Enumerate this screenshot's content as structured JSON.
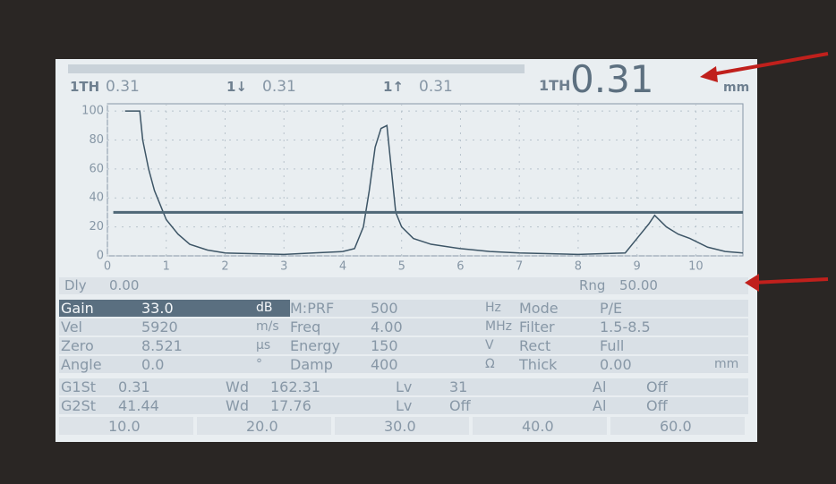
{
  "header": {
    "readings": [
      {
        "label": "1TH",
        "value": "0.31"
      },
      {
        "label": "1↓",
        "value": "0.31"
      },
      {
        "label": "1↑",
        "value": "0.31"
      }
    ],
    "main_reading": {
      "label": "1TH",
      "value": "0.31"
    },
    "unit": "mm"
  },
  "chart_data": {
    "type": "line",
    "x": [
      0.3,
      0.55,
      0.6,
      0.7,
      0.8,
      0.9,
      1.0,
      1.2,
      1.4,
      1.7,
      2.0,
      3.0,
      3.5,
      4.0,
      4.2,
      4.35,
      4.45,
      4.55,
      4.65,
      4.75,
      4.8,
      4.9,
      5.0,
      5.2,
      5.5,
      6.0,
      6.5,
      7.0,
      8.0,
      8.8,
      9.0,
      9.2,
      9.3,
      9.5,
      9.7,
      9.9,
      10.2,
      10.5,
      10.8
    ],
    "values": [
      100,
      100,
      80,
      60,
      45,
      35,
      25,
      15,
      8,
      4,
      2,
      1,
      2,
      3,
      5,
      20,
      45,
      75,
      88,
      90,
      70,
      30,
      20,
      12,
      8,
      5,
      3,
      2,
      1,
      2,
      12,
      22,
      28,
      20,
      15,
      12,
      6,
      3,
      2
    ],
    "color": "#3d5566",
    "xlim": [
      0,
      10.8
    ],
    "ylim": [
      0,
      105
    ],
    "xticks": [
      0,
      1,
      2,
      3,
      4,
      5,
      6,
      7,
      8,
      9,
      10
    ],
    "yticks": [
      0,
      20,
      40,
      60,
      80,
      100
    ],
    "grid": true,
    "gate": {
      "start": 0.1,
      "end": 10.8,
      "level": 30
    }
  },
  "status": {
    "delay_label": "Dly",
    "delay": "0.00",
    "range_label": "Rng",
    "range": "50.00"
  },
  "params": [
    [
      {
        "label": "Gain",
        "value": "33.0",
        "unit": "dB"
      },
      {
        "label": "M:PRF",
        "value": "500",
        "unit": "Hz"
      },
      {
        "label": "Mode",
        "value": "P/E"
      }
    ],
    [
      {
        "label": "Vel",
        "value": "5920",
        "unit": "m/s"
      },
      {
        "label": "Freq",
        "value": "4.00",
        "unit": "MHz"
      },
      {
        "label": "Filter",
        "value": "1.5-8.5"
      }
    ],
    [
      {
        "label": "Zero",
        "value": "8.521",
        "unit": "µs"
      },
      {
        "label": "Energy",
        "value": "150",
        "unit": "V"
      },
      {
        "label": "Rect",
        "value": "Full"
      }
    ],
    [
      {
        "label": "Angle",
        "value": "0.0",
        "unit": "°"
      },
      {
        "label": "Damp",
        "value": "400",
        "unit": "Ω"
      },
      {
        "label": "Thick",
        "value": "0.00",
        "unit": "mm"
      }
    ]
  ],
  "gates": [
    [
      "G1St",
      "0.31",
      "Wd",
      "162.31",
      "Lv",
      "31",
      "Al",
      "Off"
    ],
    [
      "G2St",
      "41.44",
      "Wd",
      "17.76",
      "Lv",
      "Off",
      "Al",
      "Off"
    ]
  ],
  "softkeys": [
    "10.0",
    "20.0",
    "30.0",
    "40.0",
    "60.0"
  ]
}
